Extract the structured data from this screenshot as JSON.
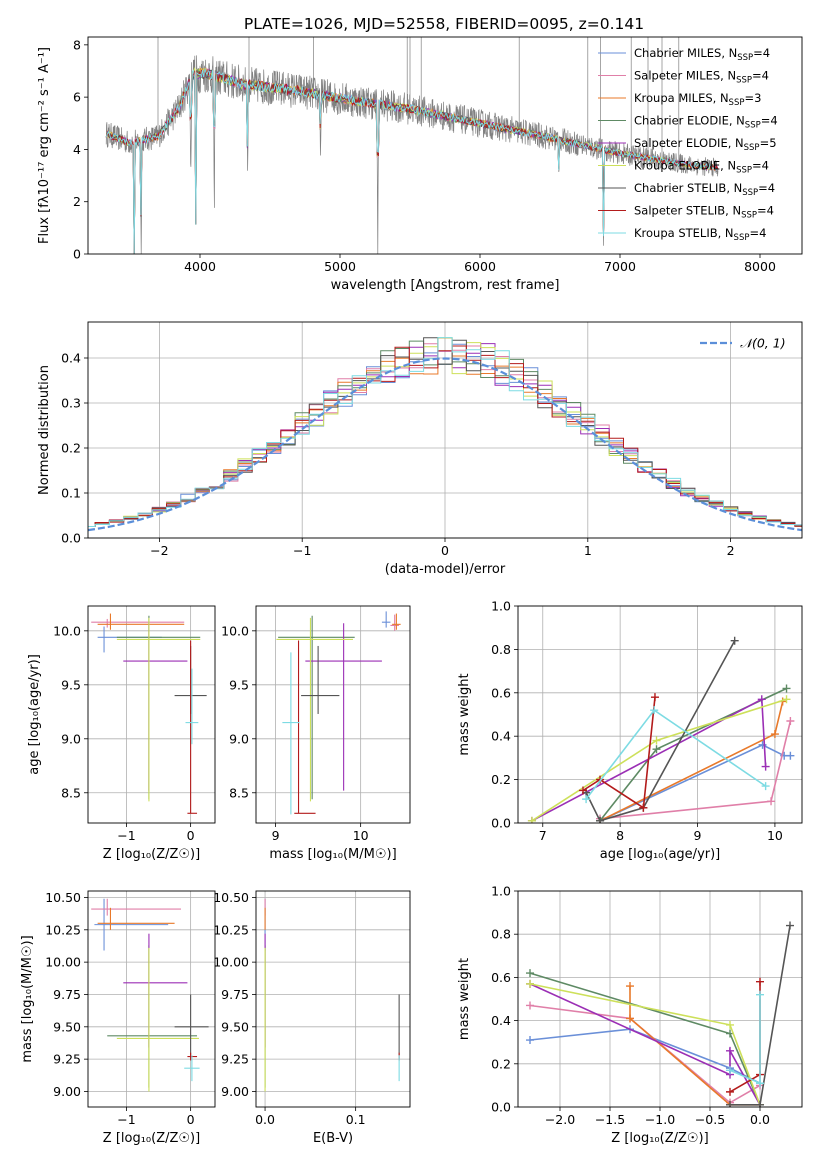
{
  "figure_title": "PLATE=1026, MJD=52558, FIBERID=0095, z=0.141",
  "model_colors": {
    "Chabrier MILES": "#6a8fd8",
    "Salpeter MILES": "#e07fa8",
    "Kroupa MILES": "#e8792a",
    "Chabrier ELODIE": "#5e8a64",
    "Salpeter ELODIE": "#9b2fb5",
    "Kroupa ELODIE": "#cde05a",
    "Chabrier STELIB": "#555555",
    "Salpeter STELIB": "#b31b1b",
    "Kroupa STELIB": "#7ddbe3",
    "data": "#808080",
    "gaussian": "#5b8fd9"
  },
  "chart_data": [
    {
      "id": "spectrum",
      "type": "line",
      "xlabel": "wavelength [Angstrom, rest frame]",
      "ylabel": "Flux [fλ10⁻¹⁷ erg cm⁻² s⁻¹ A⁻¹]",
      "xlim": [
        3200,
        8300
      ],
      "ylim": [
        0,
        8.3
      ],
      "xticks": [
        4000,
        5000,
        6000,
        7000,
        8000
      ],
      "yticks": [
        0,
        2,
        4,
        6,
        8
      ],
      "grid": false,
      "legend_position": "top-right",
      "legend": [
        {
          "label": "Chabrier MILES, N",
          "sub": "SSP",
          "tail": "=4",
          "model": "Chabrier MILES"
        },
        {
          "label": "Salpeter MILES, N",
          "sub": "SSP",
          "tail": "=4",
          "model": "Salpeter MILES"
        },
        {
          "label": "Kroupa MILES, N",
          "sub": "SSP",
          "tail": "=3",
          "model": "Kroupa MILES"
        },
        {
          "label": "Chabrier ELODIE, N",
          "sub": "SSP",
          "tail": "=4",
          "model": "Chabrier ELODIE"
        },
        {
          "label": "Salpeter ELODIE, N",
          "sub": "SSP",
          "tail": "=5",
          "model": "Salpeter ELODIE"
        },
        {
          "label": "Kroupa ELODIE, N",
          "sub": "SSP",
          "tail": "=4",
          "model": "Kroupa ELODIE"
        },
        {
          "label": "Chabrier STELIB, N",
          "sub": "SSP",
          "tail": "=4",
          "model": "Chabrier STELIB"
        },
        {
          "label": "Salpeter STELIB, N",
          "sub": "SSP",
          "tail": "=4",
          "model": "Salpeter STELIB"
        },
        {
          "label": "Kroupa STELIB, N",
          "sub": "SSP",
          "tail": "=4",
          "model": "Kroupa STELIB"
        }
      ],
      "continuum_nodes": [
        [
          3330,
          4.6
        ],
        [
          3500,
          4.25
        ],
        [
          3700,
          4.5
        ],
        [
          3850,
          5.6
        ],
        [
          3950,
          6.9
        ],
        [
          4050,
          6.9
        ],
        [
          4300,
          6.5
        ],
        [
          4700,
          6.25
        ],
        [
          5000,
          5.95
        ],
        [
          5500,
          5.55
        ],
        [
          6000,
          5.0
        ],
        [
          6500,
          4.45
        ],
        [
          7000,
          3.85
        ],
        [
          7500,
          3.4
        ],
        [
          7700,
          3.3
        ]
      ],
      "absorption_lines": [
        [
          3530,
          0
        ],
        [
          3580,
          0
        ],
        [
          3934,
          2.5
        ],
        [
          3969,
          0
        ],
        [
          4102,
          1.2
        ],
        [
          4340,
          3.0
        ],
        [
          4861,
          3.6
        ],
        [
          5270,
          0
        ],
        [
          6563,
          3.1
        ],
        [
          6883,
          0
        ]
      ]
    },
    {
      "id": "residuals",
      "type": "bar",
      "xlabel": "(data-model)/error",
      "ylabel": "Normed distribution",
      "xlim": [
        -2.5,
        2.5
      ],
      "ylim": [
        0,
        0.48
      ],
      "xticks": [
        -2,
        -1,
        0,
        1,
        2
      ],
      "yticks": [
        0.0,
        0.1,
        0.2,
        0.3,
        0.4
      ],
      "grid": true,
      "legend_position": "top-right",
      "legend": [
        {
          "label": "𝒩(0, 1)",
          "model": "gaussian"
        }
      ],
      "bin_width": 0.1,
      "curve": "gaussian mean 0 sigma 1"
    },
    {
      "id": "age_vs_Z",
      "type": "scatter",
      "xlabel": "Z [log₁₀(Z/Z☉)]",
      "ylabel": "age  [log₁₀(age/yr)]",
      "xlim": [
        -1.6,
        0.38
      ],
      "ylim": [
        8.22,
        10.23
      ],
      "xticks": [
        -1,
        0
      ],
      "yticks": [
        8.5,
        9.0,
        9.5,
        10.0
      ],
      "grid": true,
      "points": [
        {
          "model": "Chabrier MILES",
          "x": -1.35,
          "y": 9.94,
          "xerr": [
            0.1,
            0.9
          ],
          "yerr": [
            0.14,
            0.1
          ]
        },
        {
          "model": "Salpeter MILES",
          "x": -1.3,
          "y": 10.08,
          "xerr": [
            0.25,
            1.2
          ],
          "yerr": [
            0.05,
            0.03
          ]
        },
        {
          "model": "Kroupa MILES",
          "x": -1.25,
          "y": 10.06,
          "xerr": [
            0.2,
            1.15
          ],
          "yerr": [
            0.05,
            0.1
          ]
        },
        {
          "model": "Chabrier ELODIE",
          "x": -0.65,
          "y": 9.94,
          "xerr": [
            0.5,
            0.8
          ],
          "yerr": [
            1.5,
            0.2
          ]
        },
        {
          "model": "Salpeter ELODIE",
          "x": -0.65,
          "y": 9.72,
          "xerr": [
            0.4,
            0.6
          ],
          "yerr": [
            1.2,
            0.35
          ]
        },
        {
          "model": "Kroupa ELODIE",
          "x": -0.65,
          "y": 9.92,
          "xerr": [
            0.5,
            0.8
          ],
          "yerr": [
            1.5,
            0.2
          ]
        },
        {
          "model": "Chabrier STELIB",
          "x": 0.0,
          "y": 9.4,
          "xerr": [
            0.25,
            0.25
          ],
          "yerr": [
            0.17,
            0.46
          ]
        },
        {
          "model": "Salpeter STELIB",
          "x": 0.0,
          "y": 8.31,
          "xerr": [
            0.05,
            0.1
          ],
          "yerr": [
            0.0,
            1.6
          ]
        },
        {
          "model": "Kroupa STELIB",
          "x": 0.02,
          "y": 9.15,
          "xerr": [
            0.1,
            0.1
          ],
          "yerr": [
            0.2,
            0.5
          ]
        }
      ]
    },
    {
      "id": "age_vs_mass",
      "type": "scatter",
      "xlabel": "mass [log₁₀(M/M☉)]",
      "ylabel": "",
      "xlim": [
        8.77,
        10.58
      ],
      "ylim": [
        8.22,
        10.23
      ],
      "xticks": [
        9,
        10
      ],
      "yticks": [
        8.5,
        9.0,
        9.5,
        10.0
      ],
      "grid": true,
      "points": [
        {
          "model": "Chabrier MILES",
          "x": 10.3,
          "y": 10.08,
          "xerr": [
            0.05,
            0.05
          ],
          "yerr": [
            0.05,
            0.1
          ]
        },
        {
          "model": "Salpeter MILES",
          "x": 10.4,
          "y": 10.05,
          "xerr": [
            0.05,
            0.05
          ],
          "yerr": [
            0.05,
            0.1
          ]
        },
        {
          "model": "Kroupa MILES",
          "x": 10.42,
          "y": 10.06,
          "xerr": [
            0.05,
            0.05
          ],
          "yerr": [
            0.05,
            0.1
          ]
        },
        {
          "model": "Chabrier ELODIE",
          "x": 9.43,
          "y": 9.94,
          "xerr": [
            0.4,
            0.5
          ],
          "yerr": [
            1.5,
            0.2
          ]
        },
        {
          "model": "Salpeter ELODIE",
          "x": 9.8,
          "y": 9.72,
          "xerr": [
            0.45,
            0.45
          ],
          "yerr": [
            1.2,
            0.35
          ]
        },
        {
          "model": "Kroupa ELODIE",
          "x": 9.41,
          "y": 9.92,
          "xerr": [
            0.4,
            0.5
          ],
          "yerr": [
            1.5,
            0.2
          ]
        },
        {
          "model": "Chabrier STELIB",
          "x": 9.5,
          "y": 9.4,
          "xerr": [
            0.2,
            0.25
          ],
          "yerr": [
            0.17,
            0.46
          ]
        },
        {
          "model": "Salpeter STELIB",
          "x": 9.27,
          "y": 8.31,
          "xerr": [
            0.05,
            0.2
          ],
          "yerr": [
            0.0,
            1.6
          ]
        },
        {
          "model": "Kroupa STELIB",
          "x": 9.18,
          "y": 9.15,
          "xerr": [
            0.1,
            0.1
          ],
          "yerr": [
            0.85,
            0.65
          ]
        }
      ]
    },
    {
      "id": "weight_vs_age",
      "type": "line",
      "xlabel": "age  [log₁₀(age/yr)]",
      "ylabel": "mass weight",
      "xlim": [
        6.68,
        10.35
      ],
      "ylim": [
        0,
        1.0
      ],
      "xticks": [
        7,
        8,
        9,
        10
      ],
      "yticks": [
        0.0,
        0.2,
        0.4,
        0.6,
        0.8,
        1.0
      ],
      "grid": true,
      "series": [
        {
          "model": "Chabrier MILES",
          "x": [
            7.74,
            9.84,
            10.12,
            10.2
          ],
          "y": [
            0.01,
            0.36,
            0.31,
            0.31
          ]
        },
        {
          "model": "Salpeter MILES",
          "x": [
            7.74,
            9.95,
            10.2
          ],
          "y": [
            0.02,
            0.1,
            0.47
          ]
        },
        {
          "model": "Kroupa MILES",
          "x": [
            7.74,
            10.0,
            10.1
          ],
          "y": [
            0.01,
            0.41,
            0.56
          ]
        },
        {
          "model": "Chabrier ELODIE",
          "x": [
            7.74,
            8.47,
            10.15
          ],
          "y": [
            0.01,
            0.34,
            0.62
          ]
        },
        {
          "model": "Salpeter ELODIE",
          "x": [
            6.86,
            9.83,
            9.88
          ],
          "y": [
            0.01,
            0.57,
            0.26
          ]
        },
        {
          "model": "Kroupa ELODIE",
          "x": [
            6.86,
            8.47,
            10.15
          ],
          "y": [
            0.01,
            0.38,
            0.57
          ]
        },
        {
          "model": "Chabrier STELIB",
          "x": [
            7.56,
            7.74,
            8.3,
            9.48
          ],
          "y": [
            0.14,
            0.01,
            0.07,
            0.84
          ]
        },
        {
          "model": "Salpeter STELIB",
          "x": [
            7.52,
            7.74,
            8.3,
            8.45
          ],
          "y": [
            0.15,
            0.2,
            0.07,
            0.58
          ]
        },
        {
          "model": "Kroupa STELIB",
          "x": [
            7.56,
            8.44,
            9.88
          ],
          "y": [
            0.11,
            0.52,
            0.17
          ]
        }
      ]
    },
    {
      "id": "mass_vs_Z",
      "type": "scatter",
      "xlabel": "Z [log₁₀(Z/Z☉)]",
      "ylabel": "mass [log₁₀(M/M☉)]",
      "xlim": [
        -1.6,
        0.38
      ],
      "ylim": [
        8.88,
        10.55
      ],
      "xticks": [
        -1,
        0
      ],
      "yticks": [
        9.0,
        9.25,
        9.5,
        9.75,
        10.0,
        10.25,
        10.5
      ],
      "grid": true,
      "points": [
        {
          "model": "Chabrier MILES",
          "x": -1.35,
          "y": 10.29,
          "xerr": [
            0.15,
            1.0
          ],
          "yerr": [
            0.2,
            0.2
          ]
        },
        {
          "model": "Salpeter MILES",
          "x": -1.3,
          "y": 10.41,
          "xerr": [
            0.25,
            1.15
          ],
          "yerr": [
            0.05,
            0.08
          ]
        },
        {
          "model": "Kroupa MILES",
          "x": -1.25,
          "y": 10.3,
          "xerr": [
            0.2,
            1.0
          ],
          "yerr": [
            0.05,
            0.12
          ]
        },
        {
          "model": "Chabrier ELODIE",
          "x": -0.65,
          "y": 9.43,
          "xerr": [
            0.65,
            0.75
          ],
          "yerr": [
            0.4,
            0.7
          ]
        },
        {
          "model": "Salpeter ELODIE",
          "x": -0.65,
          "y": 9.84,
          "xerr": [
            0.4,
            0.6
          ],
          "yerr": [
            0.5,
            0.38
          ]
        },
        {
          "model": "Kroupa ELODIE",
          "x": -0.65,
          "y": 9.41,
          "xerr": [
            0.5,
            0.78
          ],
          "yerr": [
            0.41,
            0.7
          ]
        },
        {
          "model": "Chabrier STELIB",
          "x": 0.0,
          "y": 9.5,
          "xerr": [
            0.25,
            0.28
          ],
          "yerr": [
            0.22,
            0.25
          ]
        },
        {
          "model": "Salpeter STELIB",
          "x": 0.0,
          "y": 9.27,
          "xerr": [
            0.05,
            0.1
          ],
          "yerr": [
            0.03,
            0.03
          ]
        },
        {
          "model": "Kroupa STELIB",
          "x": 0.02,
          "y": 9.18,
          "xerr": [
            0.12,
            0.12
          ],
          "yerr": [
            0.1,
            0.1
          ]
        }
      ]
    },
    {
      "id": "mass_vs_EBV",
      "type": "scatter",
      "xlabel": "E(B-V)",
      "ylabel": "",
      "xlim": [
        -0.01,
        0.16
      ],
      "ylim": [
        8.88,
        10.55
      ],
      "xticks": [
        0.0,
        0.1
      ],
      "yticks": [
        9.0,
        9.25,
        9.5,
        9.75,
        10.0,
        10.25,
        10.5
      ],
      "grid": true,
      "points": [
        {
          "model": "Chabrier MILES",
          "x": 0.0,
          "y": 10.29,
          "xerr": [
            0.0,
            0.0
          ],
          "yerr": [
            0.2,
            0.2
          ]
        },
        {
          "model": "Salpeter MILES",
          "x": 0.0,
          "y": 10.41,
          "xerr": [
            0.0,
            0.0
          ],
          "yerr": [
            0.05,
            0.08
          ]
        },
        {
          "model": "Kroupa MILES",
          "x": 0.0,
          "y": 10.3,
          "xerr": [
            0.0,
            0.0
          ],
          "yerr": [
            0.05,
            0.12
          ]
        },
        {
          "model": "Chabrier ELODIE",
          "x": 0.0,
          "y": 9.43,
          "xerr": [
            0.0,
            0.0
          ],
          "yerr": [
            0.4,
            0.7
          ]
        },
        {
          "model": "Salpeter ELODIE",
          "x": 0.0,
          "y": 9.84,
          "xerr": [
            0.0,
            0.0
          ],
          "yerr": [
            0.5,
            0.38
          ]
        },
        {
          "model": "Kroupa ELODIE",
          "x": 0.0,
          "y": 9.41,
          "xerr": [
            0.0,
            0.0
          ],
          "yerr": [
            0.41,
            0.7
          ]
        },
        {
          "model": "Chabrier STELIB",
          "x": 0.148,
          "y": 9.5,
          "xerr": [
            0.0,
            0.0
          ],
          "yerr": [
            0.22,
            0.25
          ]
        },
        {
          "model": "Salpeter STELIB",
          "x": 0.148,
          "y": 9.27,
          "xerr": [
            0.0,
            0.0
          ],
          "yerr": [
            0.03,
            0.03
          ]
        },
        {
          "model": "Kroupa STELIB",
          "x": 0.148,
          "y": 9.18,
          "xerr": [
            0.0,
            0.0
          ],
          "yerr": [
            0.1,
            0.1
          ]
        }
      ]
    },
    {
      "id": "weight_vs_Z",
      "type": "line",
      "xlabel": "Z [log₁₀(Z/Z☉)]",
      "ylabel": "mass weight",
      "xlim": [
        -2.42,
        0.42
      ],
      "ylim": [
        0,
        1.0
      ],
      "xticks": [
        -2.0,
        -1.5,
        -1.0,
        -0.5,
        0.0
      ],
      "yticks": [
        0.0,
        0.2,
        0.4,
        0.6,
        0.8,
        1.0
      ],
      "grid": true,
      "series": [
        {
          "model": "Chabrier MILES",
          "x": [
            -2.3,
            -1.3,
            -0.3,
            0.0
          ],
          "y": [
            0.31,
            0.36,
            0.18,
            0.11
          ]
        },
        {
          "model": "Salpeter MILES",
          "x": [
            -2.3,
            -1.3,
            -0.3,
            0.0
          ],
          "y": [
            0.47,
            0.41,
            0.02,
            0.1
          ]
        },
        {
          "model": "Kroupa MILES",
          "x": [
            -1.3,
            -1.3,
            -0.3,
            0.0
          ],
          "y": [
            0.56,
            0.41,
            0.01,
            0.01
          ]
        },
        {
          "model": "Chabrier ELODIE",
          "x": [
            -2.3,
            -0.3,
            0.0
          ],
          "y": [
            0.62,
            0.34,
            0.01
          ]
        },
        {
          "model": "Salpeter ELODIE",
          "x": [
            -2.3,
            -0.3,
            -0.3,
            0.0
          ],
          "y": [
            0.57,
            0.15,
            0.26,
            0.01
          ]
        },
        {
          "model": "Kroupa ELODIE",
          "x": [
            -2.3,
            -0.3,
            0.0
          ],
          "y": [
            0.57,
            0.38,
            0.01
          ]
        },
        {
          "model": "Chabrier STELIB",
          "x": [
            -0.3,
            0.0,
            0.3
          ],
          "y": [
            0.01,
            0.01,
            0.84
          ]
        },
        {
          "model": "Salpeter STELIB",
          "x": [
            -0.3,
            0.0,
            0.0
          ],
          "y": [
            0.07,
            0.15,
            0.58
          ]
        },
        {
          "model": "Kroupa STELIB",
          "x": [
            -0.3,
            0.0,
            0.0
          ],
          "y": [
            0.17,
            0.11,
            0.52
          ]
        }
      ]
    }
  ]
}
